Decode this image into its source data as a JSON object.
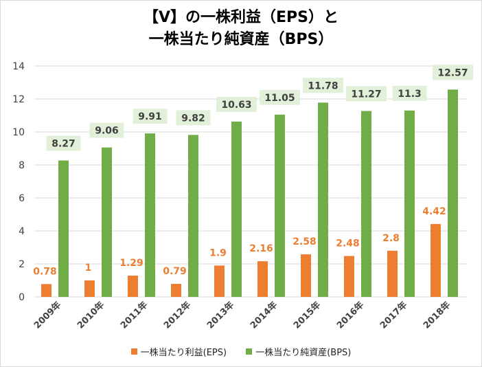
{
  "colors": {
    "eps": "#ed7d31",
    "bps": "#70ad47",
    "bps_label_bg": "#e2efd9",
    "grid": "#d9d9d9"
  },
  "chart_data": {
    "type": "bar",
    "title_line1": "【V】の一株利益（EPS）と",
    "title_line2": "一株当たり純資産（BPS）",
    "categories": [
      "2009年",
      "2010年",
      "2011年",
      "2012年",
      "2013年",
      "2014年",
      "2015年",
      "2016年",
      "2017年",
      "2018年"
    ],
    "series": [
      {
        "name": "一株当たり利益(EPS)",
        "values": [
          0.78,
          1,
          1.29,
          0.79,
          1.9,
          2.16,
          2.58,
          2.48,
          2.8,
          4.42
        ]
      },
      {
        "name": "一株当たり純資産(BPS)",
        "values": [
          8.27,
          9.06,
          9.91,
          9.82,
          10.63,
          11.05,
          11.78,
          11.27,
          11.3,
          12.57
        ]
      }
    ],
    "ylim": [
      0,
      14
    ],
    "yticks": [
      "0",
      "2",
      "4",
      "6",
      "8",
      "10",
      "12",
      "14"
    ],
    "grid": true,
    "legend": "bottom"
  }
}
